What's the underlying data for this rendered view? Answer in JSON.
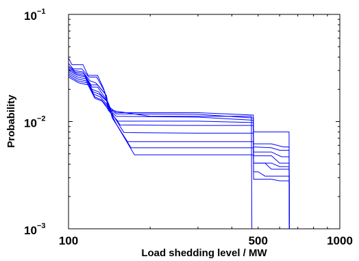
{
  "chart_data": {
    "type": "line",
    "title": "",
    "xlabel": "Load shedding level / MW",
    "ylabel": "Probability",
    "xscale": "log",
    "yscale": "log",
    "xlim": [
      100,
      1000
    ],
    "ylim": [
      0.001,
      0.1
    ],
    "grid": false,
    "legend": "none",
    "line_color": "#0000ff",
    "x_ticks": [
      {
        "value": 100,
        "label": "100"
      },
      {
        "value": 500,
        "label": "500"
      },
      {
        "value": 1000,
        "label": "1000"
      }
    ],
    "y_ticks": [
      {
        "value": 0.1,
        "base": "10",
        "exp": "−1"
      },
      {
        "value": 0.01,
        "base": "10",
        "exp": "−2"
      },
      {
        "value": 0.001,
        "base": "10",
        "exp": "−3"
      }
    ],
    "series": [
      {
        "points": [
          [
            100,
            0.039
          ],
          [
            103,
            0.034
          ],
          [
            113,
            0.034
          ],
          [
            118,
            0.027
          ],
          [
            128,
            0.027
          ],
          [
            135,
            0.02
          ],
          [
            140,
            0.014
          ],
          [
            150,
            0.0121
          ],
          [
            300,
            0.0121
          ],
          [
            480,
            0.0115
          ],
          [
            481,
            0.008
          ],
          [
            560,
            0.008
          ],
          [
            650,
            0.008
          ],
          [
            652,
            0.001
          ]
        ]
      },
      {
        "points": [
          [
            100,
            0.035
          ],
          [
            104,
            0.031
          ],
          [
            112,
            0.031
          ],
          [
            119,
            0.026
          ],
          [
            127,
            0.026
          ],
          [
            136,
            0.019
          ],
          [
            140,
            0.0135
          ],
          [
            150,
            0.0118
          ],
          [
            300,
            0.0117
          ],
          [
            480,
            0.0108
          ],
          [
            481,
            0.0062
          ],
          [
            560,
            0.0062
          ],
          [
            620,
            0.0058
          ],
          [
            650,
            0.0058
          ],
          [
            652,
            0.001
          ]
        ]
      },
      {
        "points": [
          [
            100,
            0.033
          ],
          [
            105,
            0.03
          ],
          [
            113,
            0.029
          ],
          [
            120,
            0.024
          ],
          [
            126,
            0.023
          ],
          [
            138,
            0.0175
          ],
          [
            141,
            0.013
          ],
          [
            150,
            0.0112
          ],
          [
            300,
            0.011
          ],
          [
            480,
            0.0103
          ],
          [
            481,
            0.0058
          ],
          [
            560,
            0.0057
          ],
          [
            600,
            0.0054
          ],
          [
            650,
            0.0054
          ],
          [
            652,
            0.001
          ]
        ]
      },
      {
        "points": [
          [
            100,
            0.032
          ],
          [
            106,
            0.029
          ],
          [
            114,
            0.028
          ],
          [
            121,
            0.022
          ],
          [
            128,
            0.022
          ],
          [
            137,
            0.018
          ],
          [
            140,
            0.0128
          ],
          [
            152,
            0.0101
          ],
          [
            300,
            0.0101
          ],
          [
            480,
            0.0098
          ],
          [
            481,
            0.0052
          ],
          [
            560,
            0.0052
          ],
          [
            610,
            0.0047
          ],
          [
            650,
            0.0047
          ],
          [
            652,
            0.001
          ]
        ]
      },
      {
        "points": [
          [
            100,
            0.031
          ],
          [
            107,
            0.028
          ],
          [
            114,
            0.027
          ],
          [
            122,
            0.021
          ],
          [
            128,
            0.021
          ],
          [
            138,
            0.016
          ],
          [
            142,
            0.0125
          ],
          [
            155,
            0.0093
          ],
          [
            300,
            0.0092
          ],
          [
            480,
            0.0092
          ],
          [
            481,
            0.0048
          ],
          [
            560,
            0.0048
          ],
          [
            600,
            0.0041
          ],
          [
            650,
            0.0041
          ],
          [
            652,
            0.001
          ]
        ]
      },
      {
        "points": [
          [
            100,
            0.03
          ],
          [
            108,
            0.027
          ],
          [
            116,
            0.026
          ],
          [
            122,
            0.02
          ],
          [
            129,
            0.019
          ],
          [
            140,
            0.015
          ],
          [
            146,
            0.0115
          ],
          [
            160,
            0.0079
          ],
          [
            300,
            0.0078
          ],
          [
            480,
            0.0078
          ],
          [
            481,
            0.0041
          ],
          [
            530,
            0.0041
          ],
          [
            560,
            0.0036
          ],
          [
            650,
            0.0036
          ],
          [
            652,
            0.001
          ]
        ]
      },
      {
        "points": [
          [
            100,
            0.029
          ],
          [
            108,
            0.026
          ],
          [
            116,
            0.025
          ],
          [
            123,
            0.019
          ],
          [
            130,
            0.018
          ],
          [
            140,
            0.015
          ],
          [
            145,
            0.0108
          ],
          [
            165,
            0.0065
          ],
          [
            300,
            0.0065
          ],
          [
            480,
            0.0065
          ],
          [
            481,
            0.0034
          ],
          [
            500,
            0.0034
          ],
          [
            530,
            0.0031
          ],
          [
            650,
            0.0031
          ],
          [
            652,
            0.001
          ]
        ]
      },
      {
        "points": [
          [
            100,
            0.028
          ],
          [
            108,
            0.025
          ],
          [
            116,
            0.024
          ],
          [
            124,
            0.018
          ],
          [
            131,
            0.017
          ],
          [
            140,
            0.014
          ],
          [
            148,
            0.01
          ],
          [
            170,
            0.0057
          ],
          [
            300,
            0.0057
          ],
          [
            480,
            0.0057
          ],
          [
            481,
            0.0029
          ],
          [
            560,
            0.0029
          ],
          [
            600,
            0.0028
          ],
          [
            650,
            0.0028
          ],
          [
            652,
            0.001
          ]
        ]
      },
      {
        "points": [
          [
            100,
            0.027
          ],
          [
            108,
            0.024
          ],
          [
            117,
            0.023
          ],
          [
            125,
            0.017
          ],
          [
            132,
            0.016
          ],
          [
            140,
            0.0135
          ],
          [
            150,
            0.0095
          ],
          [
            175,
            0.0049
          ],
          [
            300,
            0.0049
          ],
          [
            480,
            0.0049
          ],
          [
            481,
            0.0041
          ],
          [
            560,
            0.0041
          ],
          [
            600,
            0.0038
          ],
          [
            650,
            0.0038
          ],
          [
            652,
            0.001
          ]
        ]
      },
      {
        "points": [
          [
            100,
            0.026
          ],
          [
            109,
            0.023
          ],
          [
            118,
            0.022
          ],
          [
            125,
            0.0165
          ],
          [
            133,
            0.0155
          ],
          [
            140,
            0.013
          ],
          [
            150,
            0.0125
          ],
          [
            200,
            0.0112
          ],
          [
            300,
            0.0112
          ],
          [
            472,
            0.0112
          ],
          [
            474,
            0.001
          ]
        ]
      }
    ]
  }
}
